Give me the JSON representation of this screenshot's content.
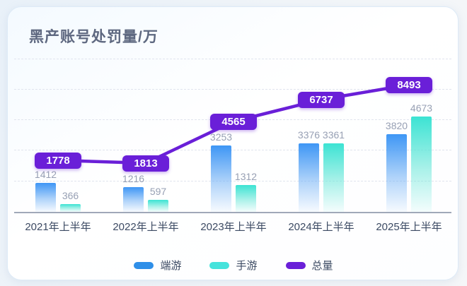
{
  "chart_data": {
    "type": "bar",
    "subtype": "grouped-bars-with-total-line",
    "title": "黑产账号处罚量/万",
    "categories": [
      "2021年上半年",
      "2022年上半年",
      "2023年上半年",
      "2024年上半年",
      "2025年上半年"
    ],
    "series": [
      {
        "name": "端游",
        "type": "bar",
        "color": "#2f8fe8",
        "bar_gradient_top": "#3e96f5",
        "values": [
          1412,
          1216,
          3253,
          3376,
          3820
        ]
      },
      {
        "name": "手游",
        "type": "bar",
        "color": "#45e3dc",
        "bar_gradient_top": "#3ce3d3",
        "values": [
          366,
          597,
          1312,
          3361,
          4673
        ]
      },
      {
        "name": "总量",
        "type": "line",
        "color": "#6a1fd8",
        "values": [
          1778,
          1813,
          4565,
          6737,
          8493
        ]
      }
    ],
    "legend": [
      "端游",
      "手游",
      "总量"
    ],
    "legend_position": "bottom",
    "grid": true,
    "value_labels_shown": true,
    "total_label_style": "purple-badge",
    "xlabel": "",
    "ylabel": "",
    "colors": {
      "badge": "#6a1fd8",
      "value_label": "#97a0b4",
      "axis_label": "#3c4a63",
      "title": "#5e6880"
    }
  }
}
